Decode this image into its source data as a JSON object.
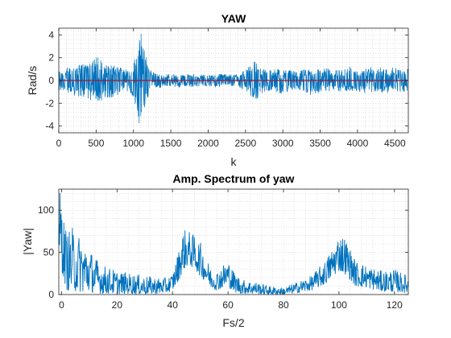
{
  "chart_data": [
    {
      "type": "line",
      "title": "YAW",
      "xlabel": "k",
      "ylabel": "Rad/s",
      "xlim": [
        0,
        4680
      ],
      "ylim": [
        -4.6,
        4.6
      ],
      "xticks": [
        0,
        500,
        1000,
        1500,
        2000,
        2500,
        3000,
        3500,
        4000,
        4500
      ],
      "yticks": [
        -4,
        -2,
        0,
        2,
        4
      ],
      "grid": "on (dotted, minor)",
      "series": [
        {
          "color": "#0072BD",
          "envelope": {
            "k": [
              0,
              100,
              200,
              300,
              400,
              500,
              600,
              700,
              800,
              900,
              950,
              1000,
              1050,
              1100,
              1150,
              1200,
              1250,
              1300,
              1400,
              1500,
              1600,
              1700,
              1800,
              1900,
              2000,
              2100,
              2200,
              2300,
              2400,
              2500,
              2600,
              2650,
              2700,
              2800,
              2900,
              3000,
              3100,
              3200,
              3300,
              3400,
              3500,
              3600,
              3700,
              3800,
              3900,
              4000,
              4100,
              4200,
              4300,
              4400,
              4500,
              4600,
              4680
            ],
            "upper": [
              0.9,
              1.1,
              1.3,
              1.5,
              1.6,
              2.2,
              1.6,
              1.4,
              1.3,
              1.1,
              0.8,
              1.6,
              2.6,
              4.3,
              3.2,
              1.2,
              0.8,
              0.6,
              0.5,
              0.6,
              0.5,
              0.5,
              0.6,
              0.5,
              0.5,
              0.5,
              0.6,
              0.5,
              0.6,
              0.9,
              1.5,
              2.1,
              1.2,
              0.9,
              1.0,
              1.0,
              0.9,
              0.8,
              1.0,
              0.9,
              1.0,
              1.1,
              0.9,
              1.0,
              1.2,
              0.9,
              1.0,
              1.2,
              1.1,
              1.0,
              1.2,
              1.1,
              1.0
            ],
            "lower": [
              -0.9,
              -1.1,
              -1.3,
              -1.5,
              -1.8,
              -2.1,
              -1.7,
              -1.5,
              -1.3,
              -1.1,
              -0.9,
              -2.0,
              -3.0,
              -4.4,
              -2.8,
              -1.3,
              -0.8,
              -0.7,
              -0.6,
              -0.5,
              -0.6,
              -0.5,
              -0.6,
              -0.5,
              -0.5,
              -0.6,
              -0.5,
              -0.5,
              -0.6,
              -0.9,
              -1.6,
              -1.7,
              -1.2,
              -0.9,
              -1.0,
              -1.2,
              -0.9,
              -0.8,
              -1.0,
              -1.5,
              -1.0,
              -1.0,
              -0.9,
              -1.0,
              -0.9,
              -1.0,
              -1.1,
              -1.0,
              -1.0,
              -1.2,
              -1.0,
              -1.1,
              -1.0
            ]
          }
        },
        {
          "color": "#A2142F",
          "x": [
            0,
            4680
          ],
          "y": [
            0,
            0
          ]
        }
      ]
    },
    {
      "type": "line",
      "title": "Amp. Spectrum of yaw",
      "xlabel": "Fs/2",
      "ylabel": "|Yaw|",
      "xlim": [
        -1,
        125
      ],
      "ylim": [
        0,
        125
      ],
      "xticks": [
        0,
        20,
        40,
        60,
        80,
        100,
        120
      ],
      "yticks": [
        0,
        50,
        100
      ],
      "grid": "on (dotted, minor)",
      "series": [
        {
          "color": "#0072BD",
          "envelope": {
            "f": [
              -1,
              0,
              1,
              2,
              4,
              6,
              8,
              10,
              12,
              15,
              20,
              25,
              30,
              35,
              38,
              40,
              42,
              44,
              46,
              48,
              50,
              52,
              54,
              56,
              58,
              60,
              62,
              65,
              70,
              75,
              80,
              85,
              90,
              95,
              98,
              100,
              102,
              104,
              106,
              110,
              115,
              120,
              125
            ],
            "upper": [
              125,
              118,
              85,
              75,
              80,
              72,
              65,
              55,
              45,
              35,
              28,
              25,
              22,
              20,
              20,
              25,
              50,
              78,
              75,
              70,
              62,
              45,
              30,
              28,
              35,
              42,
              28,
              18,
              15,
              10,
              8,
              15,
              22,
              40,
              58,
              72,
              70,
              55,
              40,
              35,
              28,
              30,
              22
            ],
            "lower": [
              40,
              30,
              15,
              5,
              3,
              4,
              2,
              3,
              2,
              1,
              1,
              1,
              0,
              1,
              2,
              5,
              15,
              30,
              35,
              30,
              22,
              15,
              8,
              5,
              8,
              10,
              3,
              1,
              1,
              0,
              0,
              2,
              5,
              12,
              22,
              28,
              25,
              18,
              10,
              8,
              4,
              3,
              2
            ]
          }
        }
      ]
    }
  ]
}
